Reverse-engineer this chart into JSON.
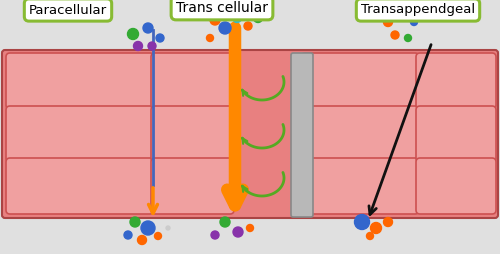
{
  "fig_width": 5.0,
  "fig_height": 2.54,
  "dpi": 100,
  "bg_color": "#e0e0e0",
  "skin_bg": "#e88080",
  "cell_fill": "#f0a0a0",
  "cell_edge": "#cc5050",
  "label_paracellular": "Paracellular",
  "label_transcellular": "Trans cellular",
  "label_transappendgeal": "Transappendgeal",
  "label_box_color": "#ffffff",
  "label_box_edge": "#88bb33",
  "arrow_orange": "#ff8800",
  "arrow_blue": "#4466bb",
  "arrow_black": "#111111",
  "swirl_color": "#55aa22",
  "channel_fill": "#b8b8b8",
  "channel_edge": "#888888"
}
